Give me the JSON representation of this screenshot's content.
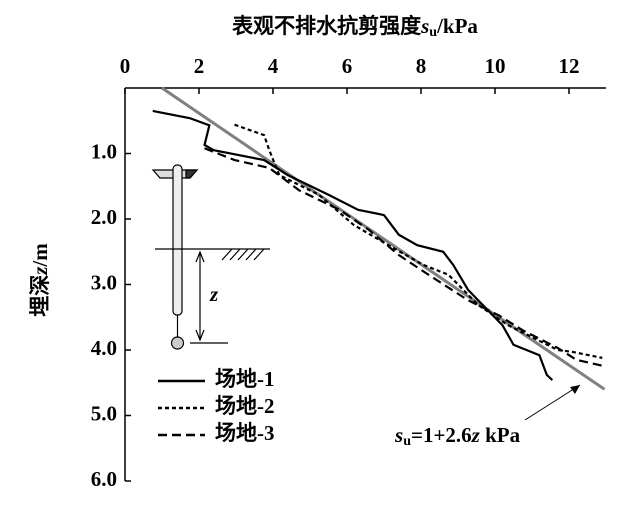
{
  "chart_data": {
    "type": "line",
    "x_label": {
      "text": "表观不排水抗剪强度",
      "symbol": "s",
      "subscript": "u",
      "unit": "/kPa"
    },
    "y_label": {
      "text": "埋深",
      "symbol": "z",
      "unit": "/m"
    },
    "xlim": [
      0,
      13
    ],
    "ylim": [
      0,
      6
    ],
    "y_reversed": true,
    "x_axis_position": "top",
    "xticks": [
      0,
      2,
      4,
      6,
      8,
      10,
      12
    ],
    "yticks": [
      {
        "value": 1,
        "label": "1.0"
      },
      {
        "value": 2,
        "label": "2.0"
      },
      {
        "value": 3,
        "label": "3.0"
      },
      {
        "value": 4,
        "label": "4.0"
      },
      {
        "value": 5,
        "label": "5.0"
      },
      {
        "value": 6,
        "label": "6.0"
      }
    ],
    "legend": "lower left",
    "series": [
      {
        "name": "场地-1",
        "color": "#000000",
        "style": "solid",
        "x": [
          0.75,
          1.75,
          2.28,
          2.15,
          2.4,
          3.76,
          4.4,
          5.5,
          6.3,
          7.0,
          7.4,
          7.9,
          8.6,
          8.87,
          9.27,
          9.8,
          10.2,
          10.5,
          11.2,
          11.4,
          11.55
        ],
        "y": [
          0.35,
          0.46,
          0.57,
          0.87,
          0.95,
          1.1,
          1.33,
          1.63,
          1.86,
          1.94,
          2.24,
          2.4,
          2.5,
          2.7,
          3.08,
          3.39,
          3.62,
          3.92,
          4.08,
          4.38,
          4.46
        ]
      },
      {
        "name": "场地-2",
        "color": "#000000",
        "style": "dotted",
        "x": [
          2.96,
          3.76,
          3.9,
          4.17,
          5.24,
          6.18,
          7.12,
          8.06,
          8.74,
          9.54,
          10.35,
          11.16,
          11.7,
          12.1,
          12.9
        ],
        "y": [
          0.56,
          0.72,
          0.95,
          1.33,
          1.63,
          2.09,
          2.4,
          2.7,
          2.85,
          3.31,
          3.62,
          3.85,
          4.0,
          4.03,
          4.12
        ]
      },
      {
        "name": "场地-3",
        "color": "#000000",
        "style": "dashed",
        "x": [
          2.15,
          2.96,
          3.9,
          4.7,
          5.8,
          6.6,
          7.4,
          8.2,
          9.27,
          10.1,
          10.75,
          11.7,
          12.2,
          12.9
        ],
        "y": [
          0.92,
          1.1,
          1.22,
          1.56,
          1.86,
          2.17,
          2.55,
          2.85,
          3.24,
          3.47,
          3.7,
          3.97,
          4.15,
          4.24
        ]
      }
    ],
    "fit_line": {
      "color": "#808080",
      "x": [
        1,
        12.96
      ],
      "y": [
        0,
        4.6
      ]
    },
    "annotation": {
      "symbol": "s",
      "subscript": "u",
      "text": "=1+2.6",
      "variable": "z",
      "unit": " kPa"
    }
  }
}
